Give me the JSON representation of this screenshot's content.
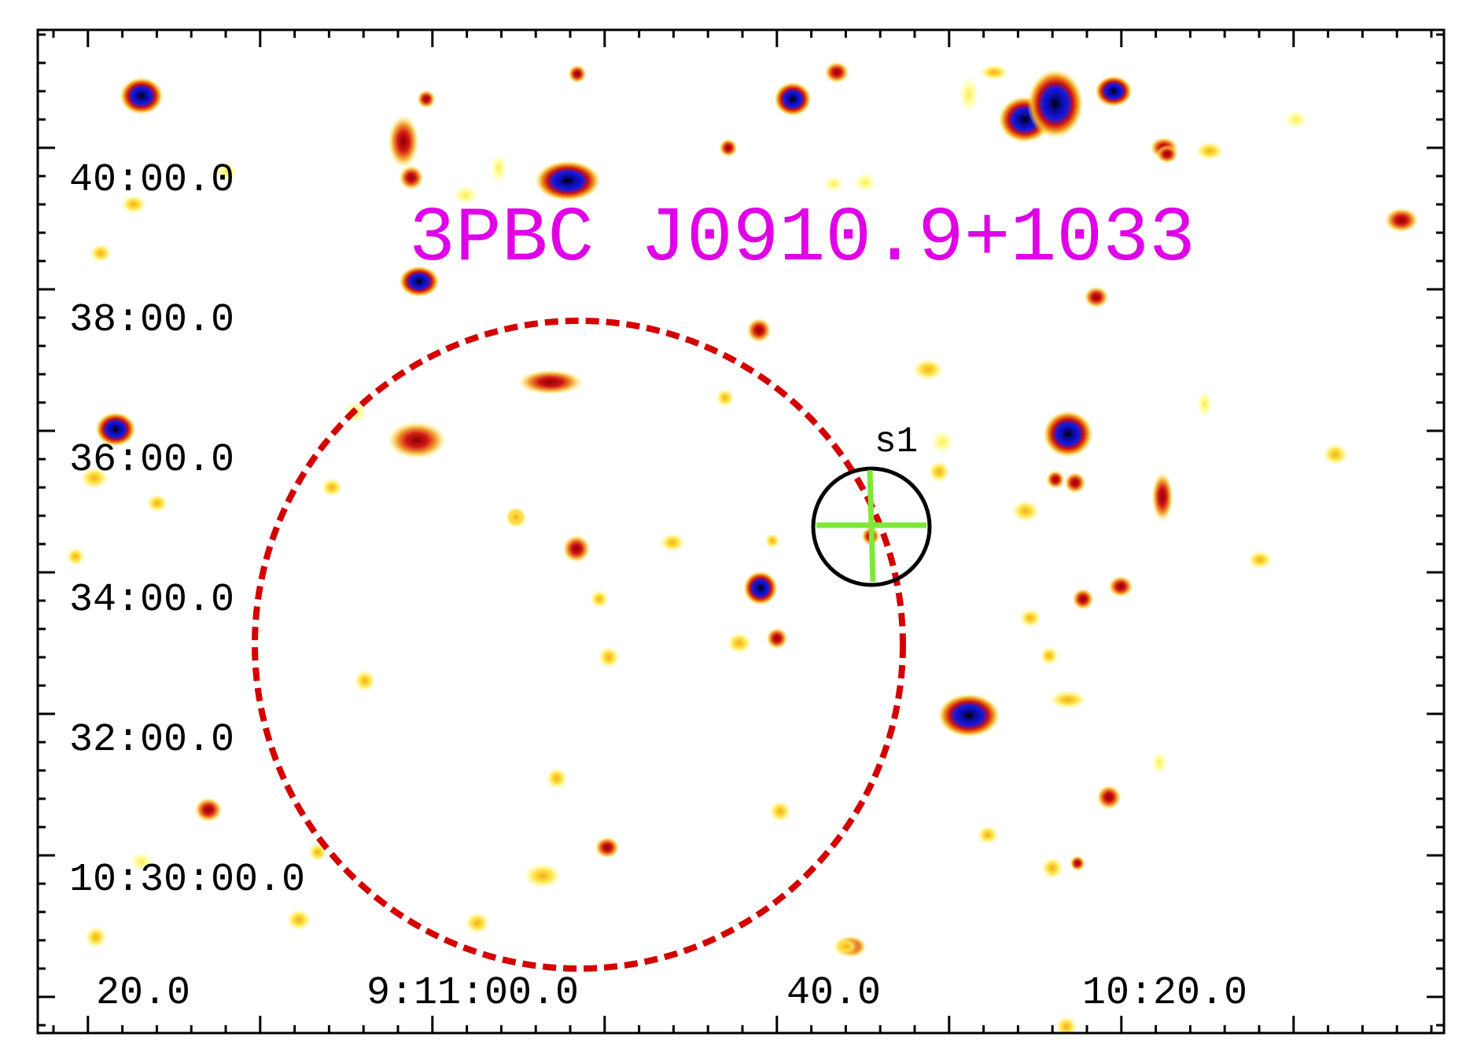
{
  "title": "3PBC J0910.9+1033",
  "source_label": "s1",
  "dec_labels": [
    "40:00.0",
    "38:00.0",
    "36:00.0",
    "34:00.0",
    "32:00.0",
    "10:30:00.0"
  ],
  "ra_labels": [
    "20.0",
    "9:11:00.0",
    "40.0",
    "10:20.0"
  ],
  "colors": {
    "title": "#e000e8",
    "error_circle": "#d40000",
    "source_circle": "#000000",
    "crosshair": "#7ee83a",
    "frame": "#000000",
    "background": "#ffffff"
  }
}
